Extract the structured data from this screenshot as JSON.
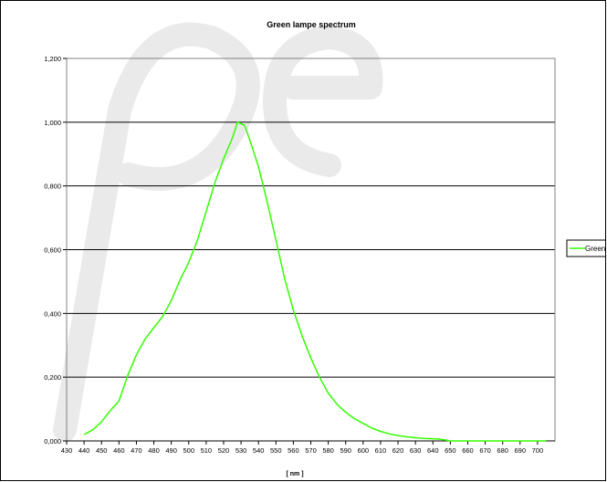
{
  "chart_data": {
    "type": "line",
    "title": "Green lampe spectrum",
    "xlabel": "[ nm ]",
    "ylabel": "",
    "xlim": [
      430,
      710
    ],
    "ylim": [
      0,
      1.2
    ],
    "grid": true,
    "legend_position": "right",
    "x_ticks": [
      "430",
      "440",
      "450",
      "460",
      "470",
      "480",
      "490",
      "500",
      "510",
      "520",
      "530",
      "540",
      "550",
      "560",
      "570",
      "580",
      "590",
      "600",
      "610",
      "620",
      "630",
      "640",
      "650",
      "660",
      "670",
      "680",
      "690",
      "700"
    ],
    "y_ticks": [
      "0,000",
      "0,200",
      "0,400",
      "0,600",
      "0,800",
      "1,000",
      "1,200"
    ],
    "series": [
      {
        "name": "Green",
        "color": "#33ff00",
        "x": [
          440,
          445,
          450,
          455,
          460,
          465,
          470,
          475,
          480,
          485,
          490,
          495,
          500,
          505,
          510,
          515,
          520,
          525,
          528,
          532,
          535,
          540,
          545,
          550,
          555,
          560,
          565,
          570,
          575,
          580,
          585,
          590,
          595,
          600,
          605,
          610,
          615,
          620,
          625,
          630,
          635,
          640,
          645,
          650,
          655,
          660,
          665,
          670,
          675,
          680,
          685,
          690,
          695,
          700,
          705
        ],
        "y": [
          0.02,
          0.035,
          0.06,
          0.095,
          0.125,
          0.205,
          0.27,
          0.32,
          0.355,
          0.39,
          0.44,
          0.505,
          0.56,
          0.63,
          0.72,
          0.81,
          0.885,
          0.95,
          1.0,
          0.99,
          0.945,
          0.86,
          0.75,
          0.63,
          0.51,
          0.41,
          0.33,
          0.26,
          0.2,
          0.15,
          0.115,
          0.09,
          0.07,
          0.055,
          0.04,
          0.03,
          0.022,
          0.017,
          0.013,
          0.01,
          0.008,
          0.007,
          0.005,
          0.0,
          0.0,
          0.0,
          0.0,
          0.0,
          0.0,
          0.0,
          0.0,
          0.0,
          0.0,
          0.0,
          0.0
        ]
      }
    ]
  }
}
